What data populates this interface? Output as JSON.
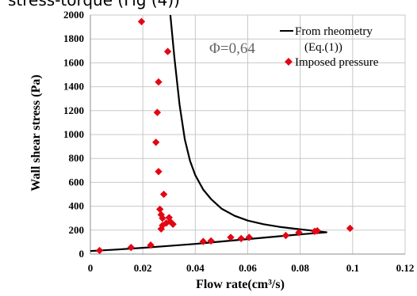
{
  "partial_caption": "stress-torque (Fig (4))",
  "chart_data": {
    "type": "scatter",
    "xlabel": "Flow rate(cm³/s)",
    "ylabel": "Wall shear stress (Pa)",
    "xlim": [
      0,
      0.12
    ],
    "ylim": [
      0,
      2000
    ],
    "x_ticks": [
      "0",
      "0.02",
      "0.04",
      "0.06",
      "0.08",
      "0.1",
      "0.12"
    ],
    "y_ticks": [
      "0",
      "200",
      "400",
      "600",
      "800",
      "1000",
      "1200",
      "1400",
      "1600",
      "1800",
      "2000"
    ],
    "annotation": "Φ=0,64",
    "legend": {
      "position": "top-right",
      "line_label_line1": "From rheometry",
      "line_label_line2": "(Eq.(1))",
      "marker_label": "Imposed pressure"
    },
    "line_series": {
      "name": "From rheometry (Eq.(1))",
      "color": "#000000",
      "upper_branch": [
        {
          "x": 0.0305,
          "y": 2000
        },
        {
          "x": 0.032,
          "y": 1650
        },
        {
          "x": 0.034,
          "y": 1250
        },
        {
          "x": 0.036,
          "y": 960
        },
        {
          "x": 0.038,
          "y": 780
        },
        {
          "x": 0.04,
          "y": 660
        },
        {
          "x": 0.043,
          "y": 540
        },
        {
          "x": 0.046,
          "y": 460
        },
        {
          "x": 0.05,
          "y": 380
        },
        {
          "x": 0.055,
          "y": 320
        },
        {
          "x": 0.06,
          "y": 280
        },
        {
          "x": 0.066,
          "y": 250
        },
        {
          "x": 0.072,
          "y": 228
        },
        {
          "x": 0.078,
          "y": 212
        },
        {
          "x": 0.083,
          "y": 200
        },
        {
          "x": 0.087,
          "y": 190
        },
        {
          "x": 0.09,
          "y": 182
        }
      ],
      "lower_branch": [
        {
          "x": 0.09,
          "y": 182
        },
        {
          "x": 0.08,
          "y": 165
        },
        {
          "x": 0.07,
          "y": 145
        },
        {
          "x": 0.06,
          "y": 125
        },
        {
          "x": 0.05,
          "y": 105
        },
        {
          "x": 0.04,
          "y": 85
        },
        {
          "x": 0.03,
          "y": 68
        },
        {
          "x": 0.02,
          "y": 52
        },
        {
          "x": 0.01,
          "y": 38
        },
        {
          "x": 0.0,
          "y": 25
        }
      ]
    },
    "scatter_series": {
      "name": "Imposed pressure",
      "color": "#e30613",
      "points": [
        {
          "x": 0.0195,
          "y": 1945
        },
        {
          "x": 0.0295,
          "y": 1695
        },
        {
          "x": 0.026,
          "y": 1440
        },
        {
          "x": 0.0255,
          "y": 1185
        },
        {
          "x": 0.025,
          "y": 935
        },
        {
          "x": 0.026,
          "y": 690
        },
        {
          "x": 0.028,
          "y": 500
        },
        {
          "x": 0.0265,
          "y": 375
        },
        {
          "x": 0.027,
          "y": 330
        },
        {
          "x": 0.0275,
          "y": 300
        },
        {
          "x": 0.03,
          "y": 305
        },
        {
          "x": 0.0305,
          "y": 270
        },
        {
          "x": 0.029,
          "y": 260
        },
        {
          "x": 0.0315,
          "y": 250
        },
        {
          "x": 0.0275,
          "y": 240
        },
        {
          "x": 0.027,
          "y": 210
        },
        {
          "x": 0.0035,
          "y": 30
        },
        {
          "x": 0.0155,
          "y": 55
        },
        {
          "x": 0.023,
          "y": 75
        },
        {
          "x": 0.043,
          "y": 105
        },
        {
          "x": 0.046,
          "y": 110
        },
        {
          "x": 0.0535,
          "y": 140
        },
        {
          "x": 0.0575,
          "y": 130
        },
        {
          "x": 0.0605,
          "y": 140
        },
        {
          "x": 0.0745,
          "y": 155
        },
        {
          "x": 0.0795,
          "y": 180
        },
        {
          "x": 0.0855,
          "y": 190
        },
        {
          "x": 0.0865,
          "y": 195
        },
        {
          "x": 0.099,
          "y": 215
        }
      ]
    }
  }
}
